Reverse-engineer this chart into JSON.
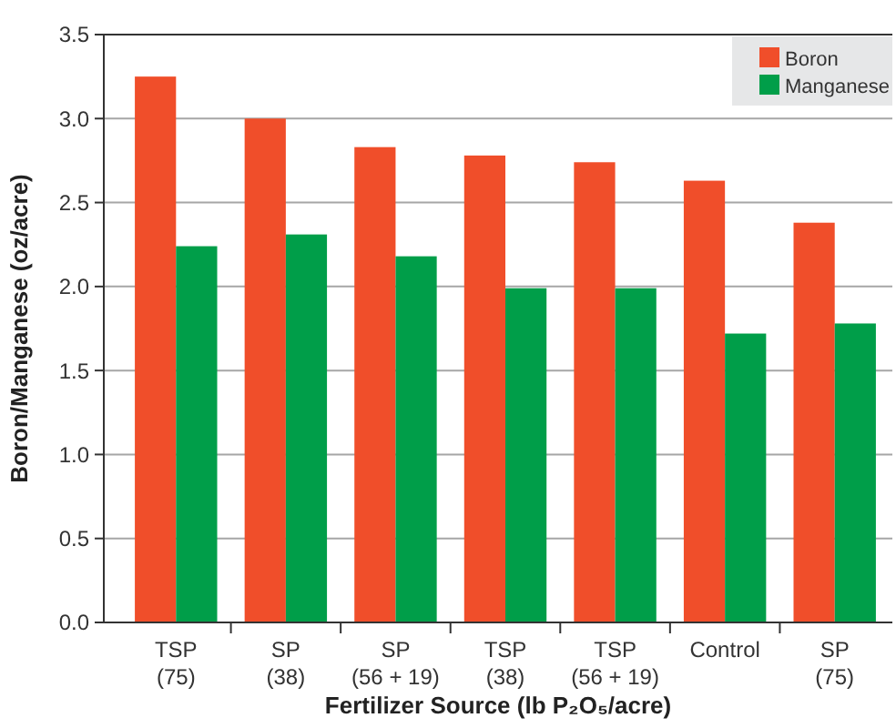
{
  "chart_data": {
    "type": "bar",
    "xlabel": "Fertilizer Source (lb P₂O₅/acre)",
    "ylabel": "Boron/Manganese (oz/acre)",
    "categories": [
      "TSP (75)",
      "SP (38)",
      "SP (56 + 19)",
      "TSP (38)",
      "TSP (56 + 19)",
      "Control",
      "SP (75)"
    ],
    "series": [
      {
        "name": "Boron",
        "color": "#f04e2a",
        "values": [
          3.25,
          3.0,
          2.83,
          2.78,
          2.74,
          2.63,
          2.38
        ]
      },
      {
        "name": "Manganese",
        "color": "#009e49",
        "values": [
          2.24,
          2.31,
          2.18,
          1.99,
          1.99,
          1.72,
          1.78
        ]
      }
    ],
    "ylim": [
      0,
      3.5
    ],
    "yticks": [
      {
        "value": 0,
        "label": "0.0"
      },
      {
        "value": 0.5,
        "label": "0.5"
      },
      {
        "value": 1,
        "label": "1.0"
      },
      {
        "value": 1.5,
        "label": "1.5"
      },
      {
        "value": 2,
        "label": "2.0"
      },
      {
        "value": 2.5,
        "label": "2.5"
      },
      {
        "value": 3,
        "label": "3.0"
      },
      {
        "value": 3.5,
        "label": "3.5"
      }
    ],
    "grid": "y",
    "legend": "top right"
  }
}
